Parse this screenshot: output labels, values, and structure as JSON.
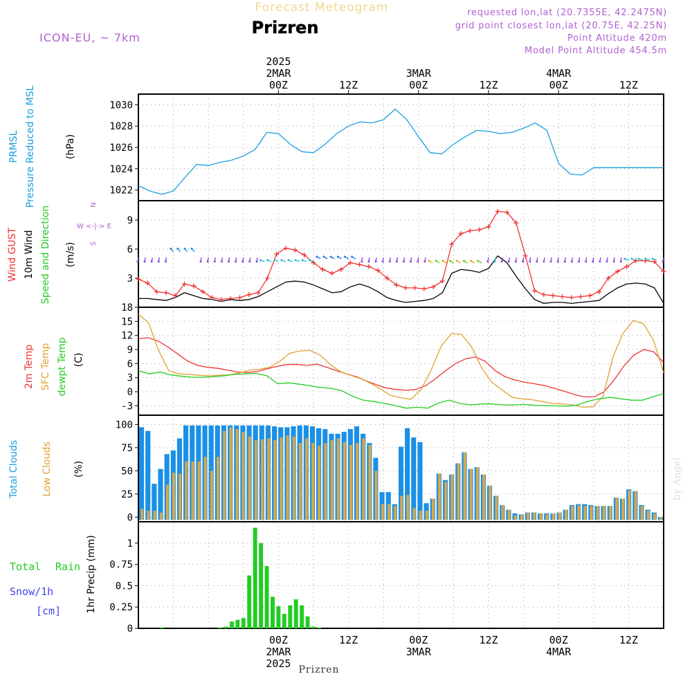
{
  "header": {
    "title": "Prizren",
    "subtitle": "Forecast Meteogram",
    "model": "ICON-EU, ~ 7km",
    "requested": "requested lon,lat (20.7355E, 42.2475N)",
    "grid": "grid point closest lon,lat (20.75E, 42.25N)",
    "point_alt": "Point Altitude 420m",
    "model_alt": "Model Point Altitude 454.5m",
    "footer": "Prizren",
    "watermark": "by Angel"
  },
  "time_axis": {
    "top_labels": [
      {
        "t": 24,
        "lines": [
          "2025",
          "2MAR",
          "00Z"
        ]
      },
      {
        "t": 36,
        "lines": [
          "12Z"
        ]
      },
      {
        "t": 48,
        "lines": [
          "3MAR",
          "00Z"
        ]
      },
      {
        "t": 60,
        "lines": [
          "12Z"
        ]
      },
      {
        "t": 72,
        "lines": [
          "4MAR",
          "00Z"
        ]
      },
      {
        "t": 84,
        "lines": [
          "12Z"
        ]
      }
    ],
    "bottom_labels": [
      {
        "t": 24,
        "lines": [
          "00Z",
          "2MAR",
          "2025"
        ]
      },
      {
        "t": 36,
        "lines": [
          "12Z"
        ]
      },
      {
        "t": 48,
        "lines": [
          "00Z",
          "3MAR"
        ]
      },
      {
        "t": 60,
        "lines": [
          "12Z"
        ]
      },
      {
        "t": 72,
        "lines": [
          "00Z",
          "4MAR"
        ]
      },
      {
        "t": 84,
        "lines": [
          "12Z"
        ]
      }
    ]
  },
  "panels": {
    "pressure": {
      "labels": [
        "PRMSL",
        "Pressure Reduced to MSL"
      ],
      "unit": "(hPa)",
      "ticks": [
        "1022",
        "1024",
        "1026",
        "1028",
        "1030"
      ]
    },
    "wind": {
      "labels": [
        "Wind GUST",
        "10m Wind",
        "Speed and Direction"
      ],
      "unit": "(m/s)",
      "ticks": [
        "3",
        "6",
        "9"
      ],
      "compass": [
        "N",
        "W <-|-> E",
        "S"
      ]
    },
    "temp": {
      "labels": [
        "2m Temp",
        "SFC Temp",
        "dewpt Temp"
      ],
      "unit": "(C)",
      "ticks": [
        "-3",
        "0",
        "3",
        "6",
        "9",
        "12",
        "15",
        "18"
      ]
    },
    "clouds": {
      "labels": [
        "Total Clouds",
        "Low Clouds"
      ],
      "unit": "(%)",
      "ticks": [
        "0",
        "25",
        "50",
        "75",
        "100"
      ]
    },
    "precip": {
      "labels": [
        "Total",
        "Rain",
        "Snow/1h",
        "[cm]"
      ],
      "unit": "1hr Precip (mm)",
      "ticks": [
        "0",
        "0.25",
        "0.5",
        "0.75",
        "1"
      ]
    }
  },
  "colors": {
    "pressure": "#1a9fe0",
    "gust": "#ee3333",
    "wind": "#000000",
    "temp2m": "#ee3333",
    "sfc": "#e0a030",
    "dewpt": "#22cc22",
    "total_clouds": "#1a90e6",
    "low_clouds": "#d8a84a",
    "rain": "#22cc22",
    "snow": "#4444ee",
    "header_purple": "#b060d0"
  },
  "chart_data": [
    {
      "type": "line",
      "series": [
        {
          "name": "PRMSL",
          "x": [
            0,
            2,
            4,
            6,
            8,
            10,
            12,
            14,
            16,
            18,
            20,
            22,
            24,
            26,
            28,
            30,
            32,
            34,
            36,
            38,
            40,
            42,
            44,
            46,
            48,
            50,
            52,
            54,
            56,
            58,
            60,
            62,
            64,
            66,
            68,
            70,
            72,
            74,
            76,
            78,
            80,
            82,
            84,
            86,
            88,
            90
          ],
          "values": [
            1022.4,
            1021.9,
            1021.6,
            1021.9,
            1023.2,
            1024.4,
            1024.3,
            1024.6,
            1024.8,
            1025.2,
            1025.8,
            1027.4,
            1027.3,
            1026.3,
            1025.6,
            1025.5,
            1026.3,
            1027.3,
            1028.0,
            1028.4,
            1028.3,
            1028.6,
            1029.6,
            1028.6,
            1027.0,
            1025.5,
            1025.4,
            1026.3,
            1027.0,
            1027.6,
            1027.5,
            1027.3,
            1027.4,
            1027.8,
            1028.3,
            1027.6,
            1024.5,
            1023.5,
            1023.4,
            1024.1,
            1024.1,
            1024.1,
            1024.1,
            1024.1,
            1024.1,
            1024.1
          ]
        }
      ],
      "ylim": [
        1021,
        1031
      ]
    },
    {
      "type": "line",
      "series": [
        {
          "name": "Wind GUST",
          "values": [
            2.9,
            2.5,
            1.6,
            1.5,
            1.2,
            2.4,
            2.2,
            1.6,
            1.0,
            0.8,
            0.9,
            1.0,
            1.3,
            1.5,
            3.0,
            5.5,
            6.1,
            5.9,
            5.4,
            4.6,
            3.9,
            3.5,
            3.9,
            4.6,
            4.4,
            4.2,
            3.8,
            3.0,
            2.3,
            2.0,
            2.0,
            1.9,
            2.1,
            2.7,
            6.5,
            7.6,
            7.9,
            8.0,
            8.3,
            9.9,
            9.8,
            8.7,
            5.3,
            1.7,
            1.3,
            1.2,
            1.1,
            1.0,
            1.1,
            1.2,
            1.6,
            3.0,
            3.7,
            4.2,
            4.8,
            4.8,
            4.7,
            3.7
          ]
        },
        {
          "name": "10m Wind",
          "values": [
            0.9,
            0.9,
            0.8,
            0.7,
            1.0,
            1.5,
            1.2,
            0.9,
            0.8,
            0.6,
            0.8,
            0.7,
            0.8,
            1.1,
            1.6,
            2.1,
            2.6,
            2.7,
            2.6,
            2.3,
            1.9,
            1.5,
            1.6,
            2.1,
            2.4,
            2.1,
            1.6,
            1.0,
            0.7,
            0.5,
            0.6,
            0.7,
            0.9,
            1.5,
            3.5,
            3.9,
            3.8,
            3.6,
            4.0,
            5.3,
            4.6,
            3.2,
            1.9,
            0.8,
            0.4,
            0.5,
            0.5,
            0.4,
            0.5,
            0.6,
            0.7,
            1.4,
            2.0,
            2.4,
            2.5,
            2.4,
            2.0,
            0.4
          ]
        }
      ],
      "ylim": [
        0,
        11
      ]
    },
    {
      "type": "line",
      "series": [
        {
          "name": "2m Temp",
          "values": [
            11.3,
            11.5,
            10.8,
            9.5,
            8.0,
            6.5,
            5.6,
            5.2,
            5.0,
            4.6,
            4.2,
            4.1,
            4.3,
            4.9,
            5.4,
            5.8,
            5.8,
            5.6,
            5.9,
            5.2,
            4.5,
            3.8,
            3.2,
            2.3,
            1.5,
            0.8,
            0.5,
            0.3,
            0.5,
            1.3,
            2.8,
            4.5,
            6.0,
            7.0,
            7.4,
            6.5,
            4.5,
            3.2,
            2.5,
            2.0,
            1.7,
            1.3,
            0.7,
            0.1,
            -0.6,
            -1.1,
            -1.1,
            0.0,
            2.5,
            5.5,
            7.8,
            9.0,
            8.5,
            6.2
          ]
        },
        {
          "name": "SFC Temp",
          "values": [
            16.5,
            14.7,
            8.8,
            4.5,
            3.8,
            3.7,
            3.5,
            3.4,
            3.5,
            3.6,
            4.0,
            4.6,
            4.8,
            5.2,
            6.5,
            8.2,
            8.7,
            8.8,
            7.8,
            5.8,
            4.3,
            3.5,
            2.8,
            1.8,
            0.5,
            -0.8,
            -1.3,
            -1.6,
            0.5,
            4.7,
            9.8,
            12.4,
            12.2,
            9.5,
            5.0,
            2.0,
            0.4,
            -1.2,
            -1.5,
            -1.7,
            -2.1,
            -2.5,
            -2.6,
            -2.8,
            -3.3,
            -3.2,
            -1.0,
            7.5,
            12.5,
            15.2,
            14.5,
            11.0,
            4.0
          ]
        },
        {
          "name": "dewpt Temp",
          "values": [
            4.5,
            3.8,
            4.2,
            3.6,
            3.3,
            3.1,
            3.1,
            3.2,
            3.4,
            3.7,
            3.8,
            3.9,
            3.4,
            1.7,
            1.9,
            1.6,
            1.3,
            0.9,
            0.7,
            0.2,
            -1.0,
            -1.8,
            -2.1,
            -2.5,
            -3.0,
            -3.5,
            -3.3,
            -3.5,
            -2.4,
            -1.8,
            -2.5,
            -2.8,
            -2.6,
            -2.6,
            -2.8,
            -2.8,
            -2.7,
            -2.9,
            -3.0,
            -3.0,
            -3.1,
            -2.8,
            -2.0,
            -1.5,
            -1.2,
            -1.5,
            -1.8,
            -1.8,
            -1.1,
            -0.4
          ]
        }
      ],
      "ylim": [
        -5,
        18
      ]
    },
    {
      "type": "bar",
      "series": [
        {
          "name": "Total Clouds",
          "values": [
            97,
            93,
            36,
            52,
            68,
            72,
            85,
            99,
            99,
            99,
            99,
            99,
            99,
            99,
            99,
            99,
            99,
            99,
            99,
            99,
            99,
            98,
            97,
            97,
            98,
            99,
            99,
            98,
            96,
            95,
            90,
            90,
            92,
            95,
            98,
            90,
            80,
            64,
            27,
            27,
            14,
            76,
            96,
            86,
            81,
            15,
            20,
            47,
            40,
            46,
            58,
            70,
            52,
            54,
            46,
            34,
            23,
            13,
            8,
            4,
            3,
            5,
            5,
            4,
            4,
            4,
            5,
            8,
            13,
            14,
            14,
            13,
            12,
            12,
            12,
            21,
            20,
            30,
            28,
            13,
            8,
            5,
            0
          ]
        },
        {
          "name": "Low Clouds",
          "values": [
            9,
            7,
            7,
            5,
            35,
            48,
            47,
            60,
            60,
            60,
            65,
            50,
            65,
            93,
            97,
            95,
            92,
            87,
            83,
            84,
            85,
            83,
            86,
            88,
            87,
            80,
            85,
            80,
            77,
            80,
            83,
            85,
            81,
            78,
            80,
            85,
            78,
            50,
            14,
            14,
            12,
            23,
            24,
            10,
            7,
            7,
            20,
            47,
            38,
            46,
            58,
            70,
            52,
            54,
            46,
            34,
            23,
            13,
            8,
            2,
            3,
            5,
            5,
            4,
            3,
            4,
            5,
            8,
            12,
            13,
            12,
            12,
            12,
            12,
            12,
            21,
            20,
            29,
            28,
            12,
            7,
            4,
            0
          ]
        }
      ],
      "ylim": [
        -5,
        110
      ]
    },
    {
      "type": "bar",
      "series": [
        {
          "name": "Total Rain",
          "x": [
            4,
            14,
            15,
            16,
            17,
            18,
            19,
            20,
            21,
            22,
            23,
            24,
            25,
            26,
            27,
            28,
            29,
            30,
            31
          ],
          "values": [
            0.01,
            0.01,
            0.02,
            0.08,
            0.1,
            0.12,
            0.62,
            1.18,
            1.0,
            0.73,
            0.37,
            0.26,
            0.17,
            0.27,
            0.34,
            0.27,
            0.14,
            0.02,
            0.01
          ]
        }
      ],
      "ylim": [
        0,
        1.25
      ]
    }
  ]
}
